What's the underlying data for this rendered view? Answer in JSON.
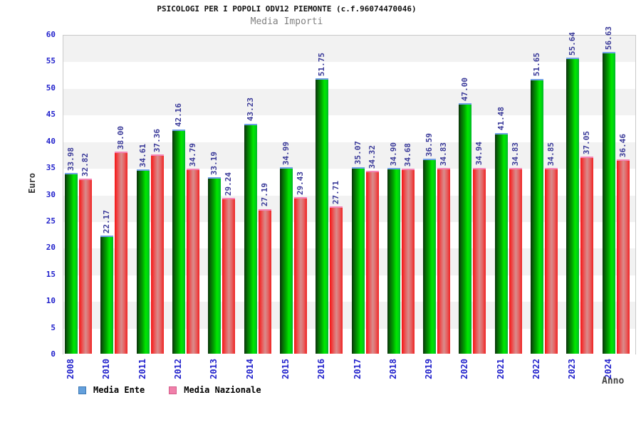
{
  "header": {
    "title": "PSICOLOGI PER I POPOLI ODV12 PIEMONTE (c.f.96074470046)",
    "subtitle": "Media Importi"
  },
  "chart_data": {
    "type": "bar",
    "title": "PSICOLOGI PER I POPOLI ODV12 PIEMONTE (c.f.96074470046)",
    "subtitle": "Media Importi",
    "xlabel": "Anno",
    "ylabel": "Euro",
    "ylim": [
      0,
      60
    ],
    "ytick_step": 5,
    "grid": "horizontal-bands-alternating",
    "legend_position": "bottom-left",
    "categories": [
      "2008",
      "2010",
      "2011",
      "2012",
      "2013",
      "2014",
      "2015",
      "2016",
      "2017",
      "2018",
      "2019",
      "2020",
      "2021",
      "2022",
      "2023",
      "2024"
    ],
    "series": [
      {
        "name": "Media Ente",
        "legend_swatch_color": "#64a0dc",
        "legend_swatch_border": "#3c78b4",
        "bar_style": "green-gradient",
        "values": [
          33.98,
          22.17,
          34.61,
          42.16,
          33.19,
          43.23,
          34.99,
          51.75,
          35.07,
          34.9,
          36.59,
          47.0,
          41.48,
          51.65,
          55.64,
          56.63
        ]
      },
      {
        "name": "Media Nazionale",
        "legend_swatch_color": "#f080aa",
        "legend_swatch_border": "#d45c8a",
        "bar_style": "red-gradient",
        "values": [
          32.82,
          38.0,
          37.36,
          34.79,
          29.24,
          27.19,
          29.43,
          27.71,
          34.32,
          34.68,
          34.83,
          34.94,
          34.83,
          34.85,
          37.05,
          36.46
        ]
      }
    ],
    "value_label_color": "#3a3a99",
    "tick_label_color": "#2222cc",
    "band_colors": [
      "#f2f2f2",
      "#ffffff"
    ]
  }
}
